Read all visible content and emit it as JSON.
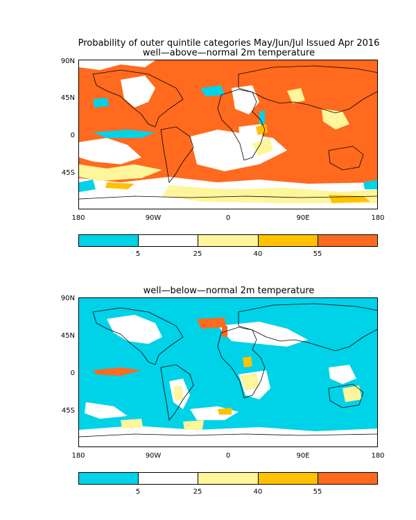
{
  "header": {
    "title": "Probability of outer quintile categories May/Jun/Jul Issued Apr 2016"
  },
  "maps": [
    {
      "subtitle": "well—above—normal 2m temperature",
      "lat_labels": [
        "90N",
        "45N",
        "0",
        "45S"
      ],
      "lon_labels": [
        "180",
        "90W",
        "0",
        "90E",
        "180"
      ],
      "colorbar_labels": [
        "5",
        "25",
        "40",
        "55"
      ]
    },
    {
      "subtitle": "well—below—normal 2m temperature",
      "lat_labels": [
        "90N",
        "45N",
        "0",
        "45S"
      ],
      "lon_labels": [
        "180",
        "90W",
        "0",
        "90E",
        "180"
      ],
      "colorbar_labels": [
        "5",
        "25",
        "40",
        "55"
      ]
    }
  ],
  "colors": {
    "bin_0_5": "#00d2e8",
    "bin_5_25": "#ffffff",
    "bin_25_40": "#fff59a",
    "bin_40_55": "#ffc100",
    "bin_55_plus": "#ff6a1e"
  }
}
